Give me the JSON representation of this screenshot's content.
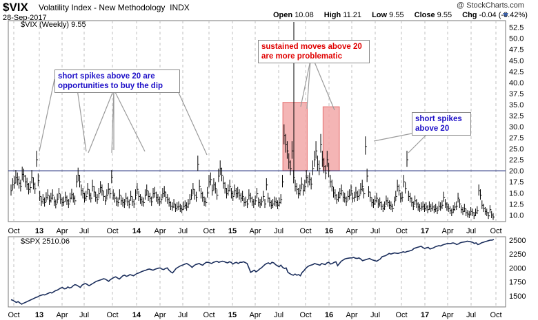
{
  "header": {
    "symbol": "$VIX",
    "name": "Volatility Index - New Methodology",
    "exchange": "INDX",
    "date": "28-Sep-2017",
    "copyright": "@ StockCharts.com",
    "open_label": "Open",
    "open": "10.08",
    "high_label": "High",
    "high": "11.21",
    "low_label": "Low",
    "low": "9.55",
    "close_label": "Close",
    "close": "9.55",
    "chg_label": "Chg",
    "chg": "-0.04 (-0.42%)"
  },
  "panels": {
    "vix_legend": "$VIX (Weekly) 9.55",
    "spx_legend": "$SPX 2510.06"
  },
  "annotations": [
    {
      "text": "short spikes above 20 are opportunities to buy the dip",
      "color": "#1e10c8"
    },
    {
      "text": "sustained moves above 20 are more problematic",
      "color": "#e00000"
    },
    {
      "text": "short spikes above 20",
      "color": "#1e10c8"
    }
  ],
  "colors": {
    "bars": "#000000",
    "line": "#1b2e5c",
    "reference_line": "#1c2a7a",
    "highlight_fill": "#f3a9a9",
    "highlight_stroke": "#e05555"
  },
  "chart_data": [
    {
      "type": "ohlc",
      "title": "$VIX (Weekly)",
      "x_ticks": [
        "Oct",
        "13",
        "Apr",
        "Jul",
        "Oct",
        "14",
        "Apr",
        "Jul",
        "Oct",
        "15",
        "Apr",
        "Jul",
        "Oct",
        "16",
        "Apr",
        "Jul",
        "Oct",
        "17",
        "Apr",
        "Jul",
        "Oct"
      ],
      "x_range": [
        "2012-10",
        "2017-10"
      ],
      "y_ticks": [
        10.0,
        12.5,
        15.0,
        17.5,
        20.0,
        22.5,
        25.0,
        27.5,
        30.0,
        32.5,
        35.0,
        37.5,
        40.0,
        42.5,
        45.0,
        47.5,
        50.0,
        52.5
      ],
      "ylim": [
        8.5,
        54
      ],
      "reference_line": 20,
      "last_close": 9.55,
      "highlights": [
        {
          "from": "2015-08",
          "to": "2015-10",
          "low": 20,
          "high": 35.5
        },
        {
          "from": "2016-01",
          "to": "2016-02",
          "low": 20,
          "high": 34.5
        }
      ],
      "series": [
        {
          "values": [
            15.5,
            16.8,
            17.2,
            18.5,
            18.0,
            17.2,
            16.5,
            19.2,
            18.8,
            17.5,
            16.9,
            15.8,
            16.2,
            18.5,
            17.0,
            15.9,
            22.5,
            17.8,
            14.2,
            13.0,
            13.5,
            12.8,
            13.9,
            14.5,
            13.2,
            13.8,
            14.5,
            13.0,
            12.4,
            13.6,
            14.8,
            13.5,
            12.8,
            13.0,
            14.0,
            13.2,
            12.5,
            13.8,
            14.6,
            13.8,
            13.2,
            17.5,
            19.0,
            17.5,
            15.5,
            14.8,
            13.8,
            14.2,
            15.8,
            14.5,
            13.8,
            16.5,
            15.2,
            14.0,
            13.5,
            14.8,
            16.2,
            15.5,
            14.2,
            13.2,
            14.5,
            15.8,
            14.8,
            18.5,
            14.5,
            13.8,
            13.0,
            12.8,
            14.5,
            13.2,
            12.8,
            12.5,
            13.8,
            13.0,
            12.4,
            14.2,
            13.0,
            12.5,
            14.5,
            15.8,
            14.2,
            13.5,
            13.0,
            12.8,
            14.5,
            15.5,
            14.2,
            13.8,
            13.0,
            14.8,
            15.0,
            14.0,
            13.5,
            13.0,
            13.5,
            14.8,
            15.2,
            14.0,
            13.5,
            12.8,
            12.0,
            11.8,
            12.5,
            11.5,
            11.8,
            12.0,
            11.5,
            11.2,
            12.0,
            12.2,
            11.8,
            12.5,
            13.5,
            14.5,
            15.8,
            14.5,
            14.0,
            21.5,
            16.5,
            14.8,
            14.0,
            13.0,
            12.8,
            15.0,
            17.5,
            18.0,
            15.5,
            16.8,
            16.0,
            14.5,
            18.8,
            20.5,
            19.0,
            17.2,
            16.0,
            14.8,
            15.5,
            16.5,
            14.8,
            14.2,
            15.5,
            14.8,
            15.0,
            14.5,
            13.8,
            14.2,
            12.8,
            13.0,
            12.5,
            14.5,
            13.8,
            13.0,
            12.5,
            13.2,
            14.8,
            12.8,
            12.5,
            13.0,
            14.2,
            12.5,
            16.8,
            13.8,
            12.8,
            12.2,
            12.5,
            13.0,
            12.8,
            12.2,
            12.8,
            13.5,
            17.5,
            28.0,
            26.0,
            24.5,
            22.0,
            20.5,
            24.5,
            18.5,
            16.5,
            15.8,
            14.8,
            15.5,
            17.0,
            15.5,
            16.5,
            18.5,
            17.5,
            18.0,
            17.0,
            20.5,
            22.5,
            24.5,
            21.5,
            20.5,
            26.0,
            22.5,
            21.0,
            19.5,
            22.5,
            20.0,
            17.5,
            16.5,
            15.0,
            14.5,
            13.5,
            14.0,
            14.8,
            15.5,
            14.0,
            13.8,
            13.0,
            14.2,
            14.5,
            15.5,
            13.8,
            14.0,
            15.0,
            14.2,
            14.5,
            15.8,
            16.5,
            14.8,
            25.5,
            18.8,
            15.2,
            14.0,
            12.8,
            12.5,
            13.2,
            13.8,
            12.5,
            12.8,
            12.0,
            11.5,
            12.0,
            13.2,
            12.8,
            12.2,
            12.0,
            11.5,
            13.0,
            14.2,
            16.5,
            15.5,
            13.8,
            14.0,
            17.5,
            16.0,
            22.5,
            14.2,
            13.8,
            12.8,
            12.0,
            13.2,
            12.5,
            11.8,
            11.5,
            11.8,
            12.0,
            11.5,
            11.8,
            11.2,
            12.0,
            11.5,
            11.8,
            11.2,
            11.5,
            11.0,
            12.0,
            11.8,
            12.2,
            14.0,
            12.5,
            11.8,
            11.5,
            11.0,
            10.5,
            11.2,
            11.8,
            12.0,
            13.8,
            12.5,
            11.2,
            10.8,
            11.5,
            10.5,
            10.2,
            10.0,
            10.8,
            10.5,
            9.8,
            10.5,
            11.0,
            15.5,
            14.5,
            12.2,
            11.5,
            10.8,
            10.5,
            9.8,
            11.2,
            10.0,
            9.55
          ]
        }
      ]
    },
    {
      "type": "line",
      "title": "$SPX",
      "x_ticks": [
        "Oct",
        "13",
        "Apr",
        "Jul",
        "Oct",
        "14",
        "Apr",
        "Jul",
        "Oct",
        "15",
        "Apr",
        "Jul",
        "Oct",
        "16",
        "Apr",
        "Jul",
        "Oct",
        "17",
        "Apr",
        "Jul",
        "Oct"
      ],
      "y_ticks": [
        1500,
        1750,
        2000,
        2250,
        2500
      ],
      "ylim": [
        1300,
        2560
      ],
      "last": 2510.06,
      "series": [
        {
          "values": [
            1430,
            1420,
            1400,
            1380,
            1395,
            1370,
            1350,
            1365,
            1380,
            1395,
            1410,
            1425,
            1440,
            1455,
            1470,
            1480,
            1500,
            1510,
            1520,
            1515,
            1530,
            1545,
            1560,
            1550,
            1570,
            1590,
            1600,
            1620,
            1640,
            1650,
            1625,
            1630,
            1660,
            1640,
            1650,
            1680,
            1700,
            1690,
            1670,
            1650,
            1690,
            1710,
            1720,
            1700,
            1680,
            1700,
            1720,
            1740,
            1760,
            1770,
            1780,
            1790,
            1805,
            1800,
            1780,
            1760,
            1790,
            1810,
            1830,
            1840,
            1820,
            1800,
            1830,
            1860,
            1870,
            1850,
            1860,
            1880,
            1870,
            1860,
            1880,
            1900,
            1910,
            1925,
            1940,
            1950,
            1960,
            1975,
            1980,
            1970,
            1960,
            1975,
            1985,
            1995,
            2000,
            1980,
            1970,
            1990,
            2000,
            1960,
            1930,
            1910,
            1950,
            1990,
            2010,
            2030,
            2045,
            2055,
            2070,
            2080,
            2060,
            2040,
            2010,
            2040,
            2060,
            2070,
            2080,
            2060,
            2050,
            2080,
            2100,
            2100,
            2090,
            2080,
            2100,
            2110,
            2120,
            2100,
            2110,
            2120,
            2115,
            2100,
            2090,
            2110,
            2100,
            2070,
            2090,
            2100,
            2080,
            2100,
            2100,
            2110,
            2095,
            2080,
            2000,
            1920,
            1940,
            1960,
            1930,
            1950,
            1980,
            2000,
            2030,
            2060,
            2080,
            2090,
            2070,
            2100,
            2090,
            2060,
            2040,
            2020,
            2050,
            2010,
            1990,
            2000,
            1920,
            1900,
            1880,
            1870,
            1890,
            1870,
            1880,
            1860,
            1920,
            1950,
            1990,
            2020,
            2040,
            2050,
            2060,
            2080,
            2070,
            2060,
            2050,
            2080,
            2070,
            2060,
            2090,
            2100,
            2070,
            2080,
            2100,
            2110,
            2040,
            2080,
            2120,
            2140,
            2160,
            2170,
            2175,
            2180,
            2180,
            2190,
            2175,
            2170,
            2180,
            2160,
            2130,
            2140,
            2150,
            2160,
            2170,
            2150,
            2140,
            2130,
            2120,
            2140,
            2160,
            2200,
            2210,
            2220,
            2240,
            2260,
            2250,
            2260,
            2270,
            2265,
            2260,
            2270,
            2280,
            2290,
            2280,
            2295,
            2300,
            2310,
            2320,
            2350,
            2360,
            2370,
            2380,
            2390,
            2365,
            2350,
            2360,
            2370,
            2340,
            2350,
            2360,
            2380,
            2390,
            2400,
            2395,
            2410,
            2420,
            2430,
            2440,
            2435,
            2440,
            2450,
            2440,
            2420,
            2430,
            2450,
            2460,
            2465,
            2470,
            2480,
            2475,
            2470,
            2460,
            2440,
            2450,
            2420,
            2430,
            2450,
            2460,
            2470,
            2480,
            2490,
            2500,
            2500,
            2510.06
          ]
        }
      ]
    }
  ]
}
